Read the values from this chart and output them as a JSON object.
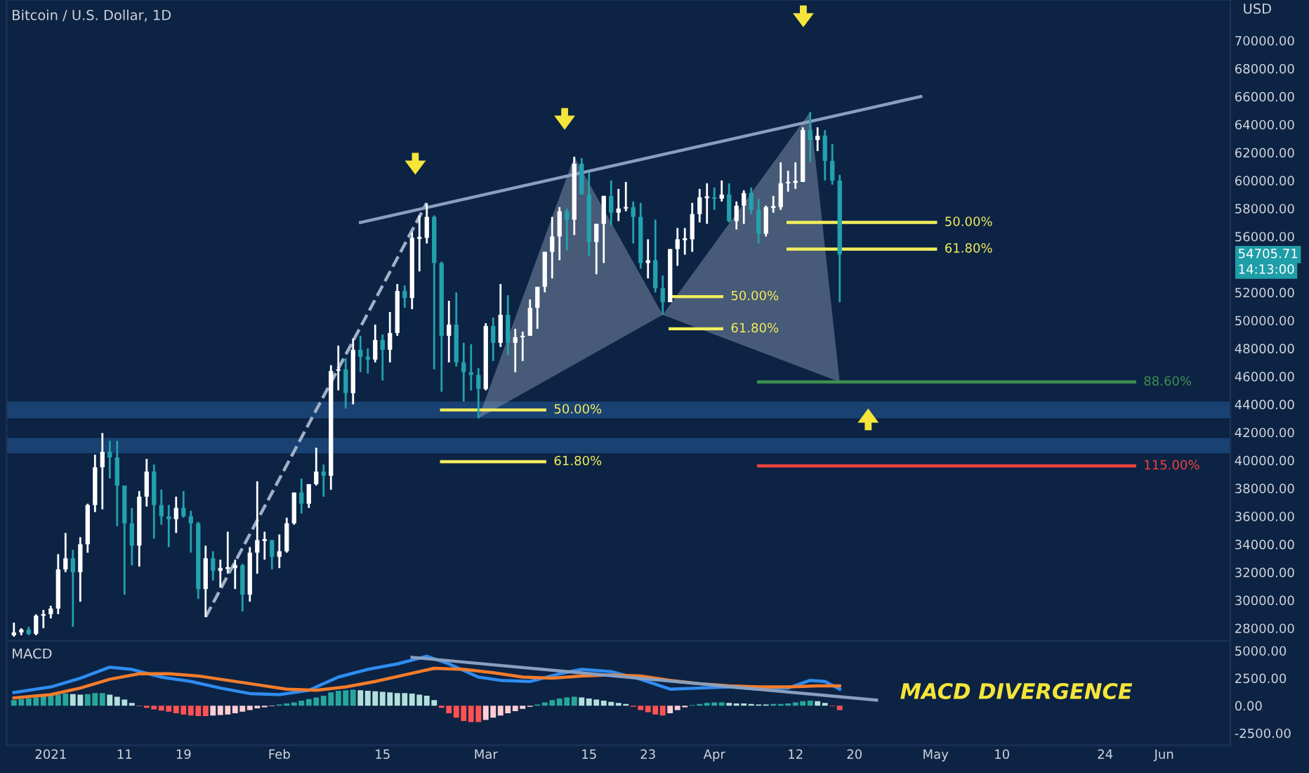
{
  "chart_data": [
    {
      "type": "candlestick",
      "title": "Bitcoin / U.S. Dollar, 1D",
      "tick_labels": "y",
      "x": [
        "2020-12-27",
        "2020-12-28",
        "2020-12-29",
        "2020-12-30",
        "2020-12-31",
        "2021-01-01",
        "2021-01-02",
        "2021-01-03",
        "2021-01-04",
        "2021-01-05",
        "2021-01-06",
        "2021-01-07",
        "2021-01-08",
        "2021-01-09",
        "2021-01-10",
        "2021-01-11",
        "2021-01-12",
        "2021-01-13",
        "2021-01-14",
        "2021-01-15",
        "2021-01-16",
        "2021-01-17",
        "2021-01-18",
        "2021-01-19",
        "2021-01-20",
        "2021-01-21",
        "2021-01-22",
        "2021-01-23",
        "2021-01-24",
        "2021-01-25",
        "2021-01-26",
        "2021-01-27",
        "2021-01-28",
        "2021-01-29",
        "2021-01-30",
        "2021-01-31",
        "2021-02-01",
        "2021-02-02",
        "2021-02-03",
        "2021-02-04",
        "2021-02-05",
        "2021-02-06",
        "2021-02-07",
        "2021-02-08",
        "2021-02-09",
        "2021-02-10",
        "2021-02-11",
        "2021-02-12",
        "2021-02-13",
        "2021-02-14",
        "2021-02-15",
        "2021-02-16",
        "2021-02-17",
        "2021-02-18",
        "2021-02-19",
        "2021-02-20",
        "2021-02-21",
        "2021-02-22",
        "2021-02-23",
        "2021-02-24",
        "2021-02-25",
        "2021-02-26",
        "2021-02-27",
        "2021-02-28",
        "2021-03-01",
        "2021-03-02",
        "2021-03-03",
        "2021-03-04",
        "2021-03-05",
        "2021-03-06",
        "2021-03-07",
        "2021-03-08",
        "2021-03-09",
        "2021-03-10",
        "2021-03-11",
        "2021-03-12",
        "2021-03-13",
        "2021-03-14",
        "2021-03-15",
        "2021-03-16",
        "2021-03-17",
        "2021-03-18",
        "2021-03-19",
        "2021-03-20",
        "2021-03-21",
        "2021-03-22",
        "2021-03-23",
        "2021-03-24",
        "2021-03-25",
        "2021-03-26",
        "2021-03-27",
        "2021-03-28",
        "2021-03-29",
        "2021-03-30",
        "2021-03-31",
        "2021-04-01",
        "2021-04-02",
        "2021-04-03",
        "2021-04-04",
        "2021-04-05",
        "2021-04-06",
        "2021-04-07",
        "2021-04-08",
        "2021-04-09",
        "2021-04-10",
        "2021-04-11",
        "2021-04-12",
        "2021-04-13",
        "2021-04-14",
        "2021-04-15",
        "2021-04-16",
        "2021-04-17",
        "2021-04-18"
      ],
      "ohlc": [
        [
          27500,
          28400,
          27400,
          27700
        ],
        [
          27700,
          28000,
          27500,
          27900
        ],
        [
          27900,
          28100,
          27500,
          27600
        ],
        [
          27600,
          28990,
          27500,
          28890
        ],
        [
          28890,
          29300,
          28000,
          29000
        ],
        [
          29000,
          29600,
          28700,
          29400
        ],
        [
          29400,
          33300,
          29000,
          32200
        ],
        [
          32200,
          34800,
          32000,
          33000
        ],
        [
          33000,
          33600,
          28100,
          32000
        ],
        [
          32000,
          34500,
          29900,
          34000
        ],
        [
          34000,
          36900,
          33400,
          36800
        ],
        [
          36800,
          40400,
          36300,
          39500
        ],
        [
          39500,
          41950,
          36500,
          40600
        ],
        [
          40600,
          41400,
          38700,
          40200
        ],
        [
          40200,
          41400,
          35300,
          38200
        ],
        [
          38200,
          38200,
          30400,
          35500
        ],
        [
          35500,
          36600,
          32500,
          33900
        ],
        [
          33900,
          37800,
          32400,
          37400
        ],
        [
          37400,
          40100,
          36700,
          39200
        ],
        [
          39200,
          39700,
          34400,
          36800
        ],
        [
          36800,
          37900,
          35400,
          36000
        ],
        [
          36000,
          36800,
          33800,
          35800
        ],
        [
          35800,
          37400,
          34800,
          36600
        ],
        [
          36600,
          37800,
          35900,
          36000
        ],
        [
          36000,
          36400,
          33400,
          35500
        ],
        [
          35500,
          35600,
          30100,
          30800
        ],
        [
          30800,
          33900,
          28800,
          33000
        ],
        [
          33000,
          33500,
          31400,
          32100
        ],
        [
          32100,
          32900,
          30900,
          32300
        ],
        [
          32300,
          34900,
          31900,
          32300
        ],
        [
          32300,
          32900,
          30800,
          32500
        ],
        [
          32500,
          32600,
          29200,
          30400
        ],
        [
          30400,
          33800,
          29900,
          33400
        ],
        [
          33400,
          38500,
          31900,
          34300
        ],
        [
          34300,
          34900,
          32900,
          34300
        ],
        [
          34300,
          34300,
          32200,
          33100
        ],
        [
          33100,
          34700,
          32300,
          33500
        ],
        [
          33500,
          35900,
          33400,
          35500
        ],
        [
          35500,
          37700,
          35400,
          37700
        ],
        [
          37700,
          38700,
          36200,
          36900
        ],
        [
          36900,
          38300,
          36600,
          38300
        ],
        [
          38300,
          40900,
          38200,
          39200
        ],
        [
          39200,
          39700,
          37400,
          38900
        ],
        [
          38900,
          46800,
          37900,
          46400
        ],
        [
          46400,
          48200,
          45000,
          46500
        ],
        [
          46500,
          47300,
          43700,
          44800
        ],
        [
          44800,
          48700,
          44000,
          47900
        ],
        [
          47900,
          48900,
          46300,
          47400
        ],
        [
          47400,
          48000,
          46200,
          47200
        ],
        [
          47200,
          49700,
          47000,
          48600
        ],
        [
          48600,
          49000,
          45700,
          47900
        ],
        [
          47900,
          50600,
          47000,
          49100
        ],
        [
          49100,
          52600,
          48900,
          52100
        ],
        [
          52100,
          52500,
          50900,
          51600
        ],
        [
          51600,
          56300,
          50800,
          55900
        ],
        [
          55900,
          57500,
          53500,
          55900
        ],
        [
          55900,
          58350,
          55500,
          57400
        ],
        [
          57400,
          57500,
          46500,
          54100
        ],
        [
          54100,
          54200,
          44900,
          48900
        ],
        [
          48900,
          51400,
          47000,
          49700
        ],
        [
          49700,
          52000,
          46700,
          47000
        ],
        [
          47000,
          48400,
          44200,
          46300
        ],
        [
          46300,
          48300,
          45000,
          46100
        ],
        [
          46100,
          46600,
          43000,
          45100
        ],
        [
          45100,
          49800,
          45000,
          49600
        ],
        [
          49600,
          50200,
          47100,
          48400
        ],
        [
          48400,
          52600,
          48100,
          50400
        ],
        [
          50400,
          51800,
          47500,
          48400
        ],
        [
          48400,
          49400,
          46300,
          48800
        ],
        [
          48800,
          49200,
          47100,
          48900
        ],
        [
          48900,
          51500,
          48900,
          50900
        ],
        [
          50900,
          52400,
          49400,
          52400
        ],
        [
          52400,
          54900,
          52000,
          54900
        ],
        [
          54900,
          57400,
          53000,
          56000
        ],
        [
          56000,
          58100,
          54300,
          57800
        ],
        [
          57800,
          58000,
          55000,
          57200
        ],
        [
          57200,
          61700,
          56100,
          61200
        ],
        [
          61200,
          61600,
          59000,
          59000
        ],
        [
          59000,
          60600,
          54600,
          55600
        ],
        [
          55600,
          56900,
          53300,
          56900
        ],
        [
          56900,
          58900,
          54100,
          58900
        ],
        [
          58900,
          60000,
          56800,
          57700
        ],
        [
          57700,
          59400,
          57100,
          58000
        ],
        [
          58000,
          59900,
          57800,
          58100
        ],
        [
          58100,
          58500,
          55500,
          57400
        ],
        [
          57400,
          58400,
          53700,
          54100
        ],
        [
          54100,
          55800,
          53000,
          54300
        ],
        [
          54300,
          57200,
          52000,
          52300
        ],
        [
          52300,
          53200,
          50400,
          51300
        ],
        [
          51300,
          55100,
          51300,
          55100
        ],
        [
          55100,
          56600,
          53900,
          55800
        ],
        [
          55800,
          56600,
          54700,
          55800
        ],
        [
          55800,
          58400,
          54900,
          57600
        ],
        [
          57600,
          59400,
          57000,
          58800
        ],
        [
          58800,
          59800,
          56900,
          58800
        ],
        [
          58800,
          59500,
          57900,
          58700
        ],
        [
          58700,
          60000,
          58500,
          59000
        ],
        [
          59000,
          59800,
          57000,
          57100
        ],
        [
          57100,
          58500,
          56500,
          58200
        ],
        [
          58200,
          59300,
          56900,
          59100
        ],
        [
          59100,
          59500,
          57600,
          57900
        ],
        [
          57900,
          58700,
          55500,
          56200
        ],
        [
          56200,
          58200,
          56000,
          58100
        ],
        [
          58100,
          58900,
          57700,
          58100
        ],
        [
          58100,
          61300,
          57900,
          59800
        ],
        [
          59800,
          60700,
          59200,
          59900
        ],
        [
          59900,
          61300,
          59400,
          59900
        ],
        [
          59900,
          63800,
          59900,
          63600
        ],
        [
          63600,
          64900,
          61300,
          62900
        ],
        [
          62900,
          63800,
          62100,
          63200
        ],
        [
          63200,
          63600,
          60000,
          61400
        ],
        [
          61400,
          62600,
          59700,
          60000
        ],
        [
          60000,
          60400,
          51300,
          54705.71
        ]
      ],
      "series": [
        {
          "type": "area",
          "color": "#b8c4d6",
          "x": [
            "2021-02-28",
            "2021-03-13",
            "2021-03-25",
            "2021-02-28"
          ],
          "values": [
            43000,
            61700,
            50400,
            43000
          ]
        },
        {
          "type": "area",
          "color": "#b8c4d6",
          "x": [
            "2021-03-25",
            "2021-04-14",
            "2021-04-18",
            "2021-03-25"
          ],
          "values": [
            50400,
            64900,
            45600,
            50400
          ]
        },
        {
          "type": "line",
          "color": "#9fb0c8",
          "line_style": "dashed",
          "x": [
            "2021-01-22",
            "2021-02-21"
          ],
          "values": [
            28800,
            58400
          ]
        },
        {
          "type": "line",
          "color": "#8a9fbf",
          "x": [
            "2021-02-12",
            "2021-04-29"
          ],
          "values": [
            57000,
            66000
          ]
        },
        {
          "type": "line",
          "name": "50.00%",
          "color": "#f2ee5c",
          "x": [
            "2021-02-23",
            "2021-03-09"
          ],
          "values": [
            43600,
            43600
          ]
        },
        {
          "type": "line",
          "name": "61.80%",
          "color": "#f2ee5c",
          "x": [
            "2021-02-23",
            "2021-03-09"
          ],
          "values": [
            39900,
            39900
          ]
        },
        {
          "type": "line",
          "name": "50.00%",
          "color": "#f2ee5c",
          "x": [
            "2021-03-26",
            "2021-04-02"
          ],
          "values": [
            51700,
            51700
          ]
        },
        {
          "type": "line",
          "name": "61.80%",
          "color": "#f2ee5c",
          "x": [
            "2021-03-26",
            "2021-04-02"
          ],
          "values": [
            49400,
            49400
          ]
        },
        {
          "type": "line",
          "name": "50.00%",
          "color": "#f2ee5c",
          "x": [
            "2021-04-11",
            "2021-05-01"
          ],
          "values": [
            57000,
            57000
          ]
        },
        {
          "type": "line",
          "name": "61.80%",
          "color": "#f2ee5c",
          "x": [
            "2021-04-11",
            "2021-05-01"
          ],
          "values": [
            55100,
            55100
          ]
        },
        {
          "type": "line",
          "name": "88.60%",
          "color": "#3f8f4f",
          "x": [
            "2021-04-07",
            "2021-05-28"
          ],
          "values": [
            45600,
            45600
          ]
        },
        {
          "type": "line",
          "name": "115.00%",
          "color": "#f0423c",
          "x": [
            "2021-04-07",
            "2021-05-28"
          ],
          "values": [
            39600,
            39600
          ]
        }
      ],
      "bands": [
        {
          "axis": "y",
          "from": 43000,
          "to": 44200,
          "color": "#1f4f86"
        },
        {
          "axis": "y",
          "from": 40500,
          "to": 41600,
          "color": "#1f4f86"
        }
      ],
      "annotations": [
        "USD",
        "54705.71",
        "14:13:00"
      ],
      "xlim": [
        "2020-12-26",
        "2021-06-10"
      ],
      "ylim": [
        27100,
        72900
      ],
      "yticks": [
        {
          "value": 28000,
          "label": "28000.00"
        },
        {
          "value": 30000,
          "label": "30000.00"
        },
        {
          "value": 32000,
          "label": "32000.00"
        },
        {
          "value": 34000,
          "label": "34000.00"
        },
        {
          "value": 36000,
          "label": "36000.00"
        },
        {
          "value": 38000,
          "label": "38000.00"
        },
        {
          "value": 40000,
          "label": "40000.00"
        },
        {
          "value": 42000,
          "label": "42000.00"
        },
        {
          "value": 44000,
          "label": "44000.00"
        },
        {
          "value": 46000,
          "label": "46000.00"
        },
        {
          "value": 48000,
          "label": "48000.00"
        },
        {
          "value": 50000,
          "label": "50000.00"
        },
        {
          "value": 52000,
          "label": "52000.00"
        },
        {
          "value": 56000,
          "label": "56000.00"
        },
        {
          "value": 58000,
          "label": "58000.00"
        },
        {
          "value": 60000,
          "label": "60000.00"
        },
        {
          "value": 62000,
          "label": "62000.00"
        },
        {
          "value": 64000,
          "label": "64000.00"
        },
        {
          "value": 66000,
          "label": "66000.00"
        },
        {
          "value": 68000,
          "label": "68000.00"
        },
        {
          "value": 70000,
          "label": "70000.00"
        }
      ]
    },
    {
      "type": "bar",
      "title": "MACD",
      "x": [
        "2020-12-27",
        "2020-12-28",
        "2020-12-29",
        "2020-12-30",
        "2020-12-31",
        "2021-01-01",
        "2021-01-02",
        "2021-01-03",
        "2021-01-04",
        "2021-01-05",
        "2021-01-06",
        "2021-01-07",
        "2021-01-08",
        "2021-01-09",
        "2021-01-10",
        "2021-01-11",
        "2021-01-12",
        "2021-01-13",
        "2021-01-14",
        "2021-01-15",
        "2021-01-16",
        "2021-01-17",
        "2021-01-18",
        "2021-01-19",
        "2021-01-20",
        "2021-01-21",
        "2021-01-22",
        "2021-01-23",
        "2021-01-24",
        "2021-01-25",
        "2021-01-26",
        "2021-01-27",
        "2021-01-28",
        "2021-01-29",
        "2021-01-30",
        "2021-01-31",
        "2021-02-01",
        "2021-02-02",
        "2021-02-03",
        "2021-02-04",
        "2021-02-05",
        "2021-02-06",
        "2021-02-07",
        "2021-02-08",
        "2021-02-09",
        "2021-02-10",
        "2021-02-11",
        "2021-02-12",
        "2021-02-13",
        "2021-02-14",
        "2021-02-15",
        "2021-02-16",
        "2021-02-17",
        "2021-02-18",
        "2021-02-19",
        "2021-02-20",
        "2021-02-21",
        "2021-02-22",
        "2021-02-23",
        "2021-02-24",
        "2021-02-25",
        "2021-02-26",
        "2021-02-27",
        "2021-02-28",
        "2021-03-01",
        "2021-03-02",
        "2021-03-03",
        "2021-03-04",
        "2021-03-05",
        "2021-03-06",
        "2021-03-07",
        "2021-03-08",
        "2021-03-09",
        "2021-03-10",
        "2021-03-11",
        "2021-03-12",
        "2021-03-13",
        "2021-03-14",
        "2021-03-15",
        "2021-03-16",
        "2021-03-17",
        "2021-03-18",
        "2021-03-19",
        "2021-03-20",
        "2021-03-21",
        "2021-03-22",
        "2021-03-23",
        "2021-03-24",
        "2021-03-25",
        "2021-03-26",
        "2021-03-27",
        "2021-03-28",
        "2021-03-29",
        "2021-03-30",
        "2021-03-31",
        "2021-04-01",
        "2021-04-02",
        "2021-04-03",
        "2021-04-04",
        "2021-04-05",
        "2021-04-06",
        "2021-04-07",
        "2021-04-08",
        "2021-04-09",
        "2021-04-10",
        "2021-04-11",
        "2021-04-12",
        "2021-04-13",
        "2021-04-14",
        "2021-04-15",
        "2021-04-16",
        "2021-04-17",
        "2021-04-18"
      ],
      "values": [
        500,
        600,
        650,
        750,
        850,
        900,
        1000,
        1100,
        1050,
        1000,
        1050,
        1150,
        1150,
        1000,
        800,
        550,
        250,
        -50,
        -200,
        -350,
        -450,
        -550,
        -700,
        -800,
        -900,
        -950,
        -950,
        -900,
        -850,
        -800,
        -700,
        -550,
        -400,
        -250,
        -150,
        -50,
        100,
        200,
        300,
        450,
        600,
        750,
        900,
        1200,
        1350,
        1400,
        1450,
        1400,
        1350,
        1300,
        1250,
        1200,
        1150,
        1150,
        1100,
        1000,
        900,
        500,
        -200,
        -700,
        -1100,
        -1400,
        -1500,
        -1500,
        -1300,
        -1100,
        -900,
        -700,
        -500,
        -300,
        -100,
        100,
        300,
        500,
        650,
        750,
        800,
        750,
        650,
        550,
        450,
        350,
        250,
        150,
        -100,
        -400,
        -600,
        -800,
        -900,
        -700,
        -400,
        -150,
        50,
        150,
        250,
        300,
        300,
        250,
        200,
        200,
        150,
        100,
        100,
        150,
        150,
        200,
        300,
        400,
        450,
        400,
        250,
        -50,
        -400
      ],
      "colors": [
        "#26a69a",
        "#26a69a",
        "#26a69a",
        "#26a69a",
        "#26a69a",
        "#26a69a",
        "#26a69a",
        "#26a69a",
        "#b2dfdb",
        "#b2dfdb",
        "#26a69a",
        "#26a69a",
        "#26a69a",
        "#b2dfdb",
        "#b2dfdb",
        "#b2dfdb",
        "#b2dfdb",
        "#ff5252",
        "#ff5252",
        "#ff5252",
        "#ff5252",
        "#ff5252",
        "#ff5252",
        "#ff5252",
        "#ff5252",
        "#ff5252",
        "#ff5252",
        "#ffcdd2",
        "#ffcdd2",
        "#ffcdd2",
        "#ffcdd2",
        "#ffcdd2",
        "#ffcdd2",
        "#ffcdd2",
        "#ffcdd2",
        "#ffcdd2",
        "#26a69a",
        "#26a69a",
        "#26a69a",
        "#26a69a",
        "#26a69a",
        "#26a69a",
        "#26a69a",
        "#26a69a",
        "#26a69a",
        "#26a69a",
        "#26a69a",
        "#b2dfdb",
        "#b2dfdb",
        "#b2dfdb",
        "#b2dfdb",
        "#b2dfdb",
        "#b2dfdb",
        "#b2dfdb",
        "#b2dfdb",
        "#b2dfdb",
        "#b2dfdb",
        "#b2dfdb",
        "#ff5252",
        "#ff5252",
        "#ff5252",
        "#ff5252",
        "#ff5252",
        "#ff5252",
        "#ffcdd2",
        "#ffcdd2",
        "#ffcdd2",
        "#ffcdd2",
        "#ffcdd2",
        "#ffcdd2",
        "#ffcdd2",
        "#26a69a",
        "#26a69a",
        "#26a69a",
        "#26a69a",
        "#26a69a",
        "#26a69a",
        "#b2dfdb",
        "#b2dfdb",
        "#b2dfdb",
        "#b2dfdb",
        "#b2dfdb",
        "#b2dfdb",
        "#b2dfdb",
        "#ff5252",
        "#ff5252",
        "#ff5252",
        "#ff5252",
        "#ff5252",
        "#ffcdd2",
        "#ffcdd2",
        "#ffcdd2",
        "#26a69a",
        "#26a69a",
        "#26a69a",
        "#26a69a",
        "#26a69a",
        "#b2dfdb",
        "#b2dfdb",
        "#b2dfdb",
        "#b2dfdb",
        "#b2dfdb",
        "#b2dfdb",
        "#26a69a",
        "#26a69a",
        "#26a69a",
        "#26a69a",
        "#26a69a",
        "#26a69a",
        "#b2dfdb",
        "#b2dfdb",
        "#ff5252",
        "#ff5252"
      ],
      "series": [
        {
          "type": "line",
          "color": "#2f8cf0",
          "x": [
            "2020-12-27",
            "2021-01-01",
            "2021-01-05",
            "2021-01-09",
            "2021-01-12",
            "2021-01-16",
            "2021-01-20",
            "2021-01-24",
            "2021-01-28",
            "2021-02-01",
            "2021-02-05",
            "2021-02-09",
            "2021-02-13",
            "2021-02-17",
            "2021-02-21",
            "2021-02-24",
            "2021-02-28",
            "2021-03-03",
            "2021-03-07",
            "2021-03-11",
            "2021-03-14",
            "2021-03-18",
            "2021-03-22",
            "2021-03-26",
            "2021-03-30",
            "2021-04-03",
            "2021-04-07",
            "2021-04-11",
            "2021-04-14",
            "2021-04-16",
            "2021-04-18"
          ],
          "values": [
            1200,
            1700,
            2500,
            3500,
            3300,
            2600,
            2200,
            1600,
            1100,
            1000,
            1400,
            2600,
            3300,
            3800,
            4500,
            3800,
            2600,
            2300,
            2200,
            2900,
            3300,
            3100,
            2400,
            1500,
            1600,
            1700,
            1500,
            1600,
            2300,
            2200,
            1500
          ]
        },
        {
          "type": "line",
          "color": "#f57c2a",
          "x": [
            "2020-12-27",
            "2021-01-01",
            "2021-01-05",
            "2021-01-09",
            "2021-01-13",
            "2021-01-17",
            "2021-01-21",
            "2021-01-25",
            "2021-01-29",
            "2021-02-02",
            "2021-02-06",
            "2021-02-10",
            "2021-02-14",
            "2021-02-18",
            "2021-02-22",
            "2021-02-26",
            "2021-03-02",
            "2021-03-06",
            "2021-03-10",
            "2021-03-14",
            "2021-03-18",
            "2021-03-22",
            "2021-03-26",
            "2021-03-30",
            "2021-04-03",
            "2021-04-07",
            "2021-04-11",
            "2021-04-15",
            "2021-04-18"
          ],
          "values": [
            700,
            1000,
            1600,
            2400,
            2900,
            2900,
            2700,
            2300,
            1900,
            1500,
            1400,
            1700,
            2200,
            2800,
            3400,
            3300,
            3000,
            2600,
            2500,
            2700,
            2800,
            2700,
            2300,
            2000,
            1800,
            1700,
            1700,
            1800,
            1800
          ]
        },
        {
          "type": "line",
          "color": "#8a9fbf",
          "x": [
            "2021-02-19",
            "2021-04-23"
          ],
          "values": [
            4400,
            500
          ]
        }
      ],
      "annotations": [
        "MACD DIVERGENCE"
      ],
      "xlim": [
        "2020-12-26",
        "2021-06-10"
      ],
      "xticks": [
        {
          "value": "2021-01-01",
          "label": "2021"
        },
        {
          "value": "2021-01-11",
          "label": "11"
        },
        {
          "value": "2021-01-19",
          "label": "19"
        },
        {
          "value": "2021-02-01",
          "label": "Feb"
        },
        {
          "value": "2021-02-15",
          "label": "15"
        },
        {
          "value": "2021-03-01",
          "label": "Mar"
        },
        {
          "value": "2021-03-15",
          "label": "15"
        },
        {
          "value": "2021-03-23",
          "label": "23"
        },
        {
          "value": "2021-04-01",
          "label": "Apr"
        },
        {
          "value": "2021-04-12",
          "label": "12"
        },
        {
          "value": "2021-04-20",
          "label": "20"
        },
        {
          "value": "2021-05-01",
          "label": "May"
        },
        {
          "value": "2021-05-10",
          "label": "10"
        },
        {
          "value": "2021-05-24",
          "label": "24"
        },
        {
          "value": "2021-06-01",
          "label": "Jun"
        }
      ],
      "ylim": [
        -3600,
        5900
      ],
      "yticks": [
        {
          "value": -2500,
          "label": "-2500.00"
        },
        {
          "value": 0,
          "label": "0.00"
        },
        {
          "value": 2500,
          "label": "2500.00"
        },
        {
          "value": 5000,
          "label": "5000.00"
        }
      ]
    }
  ]
}
